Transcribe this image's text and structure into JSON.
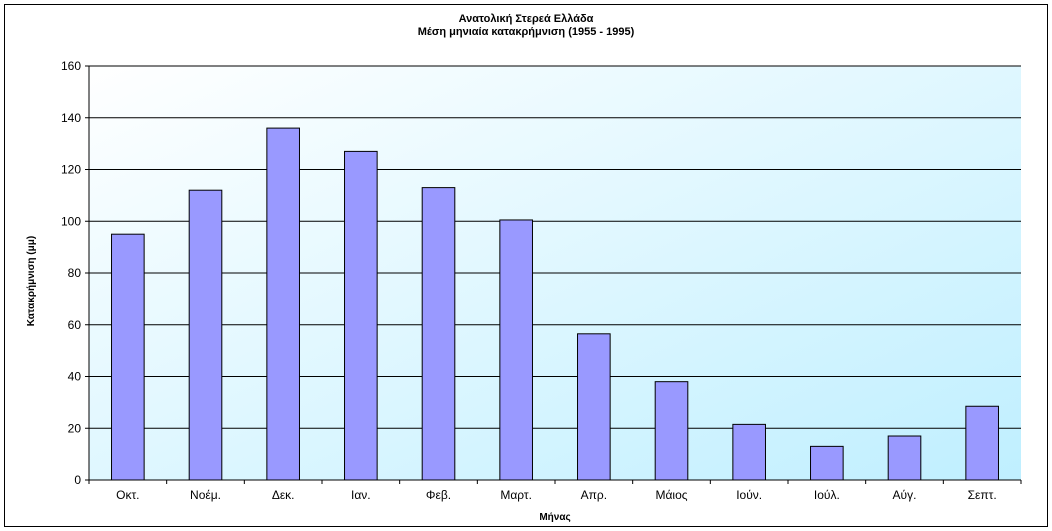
{
  "chart_data": {
    "type": "bar",
    "title": "Ανατολική Στερεά Ελλάδα",
    "subtitle": "Μέση μηνιαία κατακρήμνιση (1955 - 1995)",
    "xlabel": "Μήνας",
    "ylabel": "Κατακρήμνιση (μμ)",
    "categories": [
      "Οκτ.",
      "Νοέμ.",
      "Δεκ.",
      "Ιαν.",
      "Φεβ.",
      "Μαρτ.",
      "Απρ.",
      "Μάιος",
      "Ιούν.",
      "Ιούλ.",
      "Αύγ.",
      "Σεπτ."
    ],
    "values": [
      95,
      112,
      136,
      127,
      113,
      100.5,
      56.5,
      38,
      21.5,
      13,
      17,
      28.5
    ],
    "ylim": [
      0,
      160
    ],
    "yticks": [
      0,
      20,
      40,
      60,
      80,
      100,
      120,
      140,
      160
    ],
    "grid": true,
    "legend": "none",
    "colors": {
      "bar_fill": "#9999ff",
      "bar_stroke": "#000000",
      "plot_bg_top": "#ffffff",
      "plot_bg_bottom": "#bfefff",
      "gridline": "#000000"
    }
  }
}
